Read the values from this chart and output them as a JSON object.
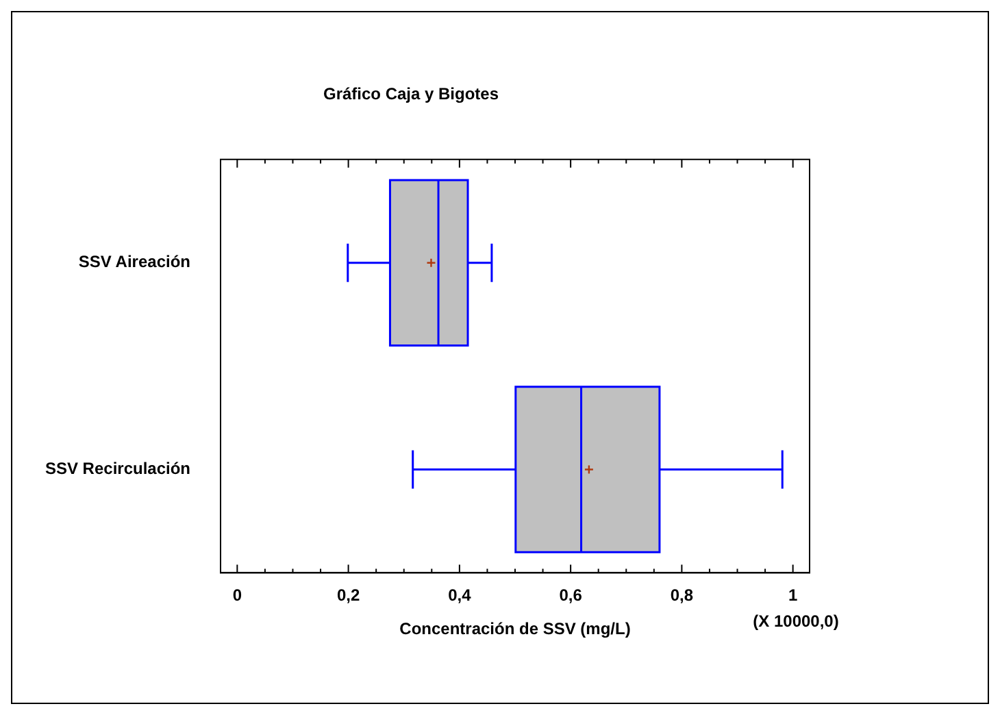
{
  "chart_data": {
    "type": "box",
    "title": "Gráfico Caja y Bigotes",
    "xlabel": "Concentración de SSV (mg/L)",
    "orientation": "horizontal",
    "categories": [
      "SSV Aireación",
      "SSV Recirculación"
    ],
    "boxes": [
      {
        "low": 0.199,
        "q1": 0.275,
        "median": 0.362,
        "q3": 0.415,
        "high": 0.458,
        "mean": 0.349
      },
      {
        "low": 0.316,
        "q1": 0.501,
        "median": 0.619,
        "q3": 0.76,
        "high": 0.981,
        "mean": 0.633
      }
    ],
    "color": "#c0c0c0",
    "xlim": [
      -0.03,
      1.03
    ],
    "xticks": [
      0,
      {
        "value": 0.05,
        "label": null
      },
      {
        "value": 0.1,
        "label": null
      },
      {
        "value": 0.15,
        "label": null
      },
      {
        "value": 0.2,
        "label": "0,2"
      },
      {
        "value": 0.25,
        "label": null
      },
      {
        "value": 0.3,
        "label": null
      },
      {
        "value": 0.35,
        "label": null
      },
      {
        "value": 0.4,
        "label": "0,4"
      },
      {
        "value": 0.45,
        "label": null
      },
      {
        "value": 0.5,
        "label": null
      },
      {
        "value": 0.55,
        "label": null
      },
      {
        "value": 0.6,
        "label": "0,6"
      },
      {
        "value": 0.65,
        "label": null
      },
      {
        "value": 0.7,
        "label": null
      },
      {
        "value": 0.75,
        "label": null
      },
      {
        "value": 0.8,
        "label": "0,8"
      },
      {
        "value": 0.85,
        "label": null
      },
      {
        "value": 0.9,
        "label": null
      },
      {
        "value": 0.95,
        "label": null
      },
      1
    ],
    "annotations": [
      "(X 10000,0)"
    ],
    "grid": false,
    "legend": false
  }
}
